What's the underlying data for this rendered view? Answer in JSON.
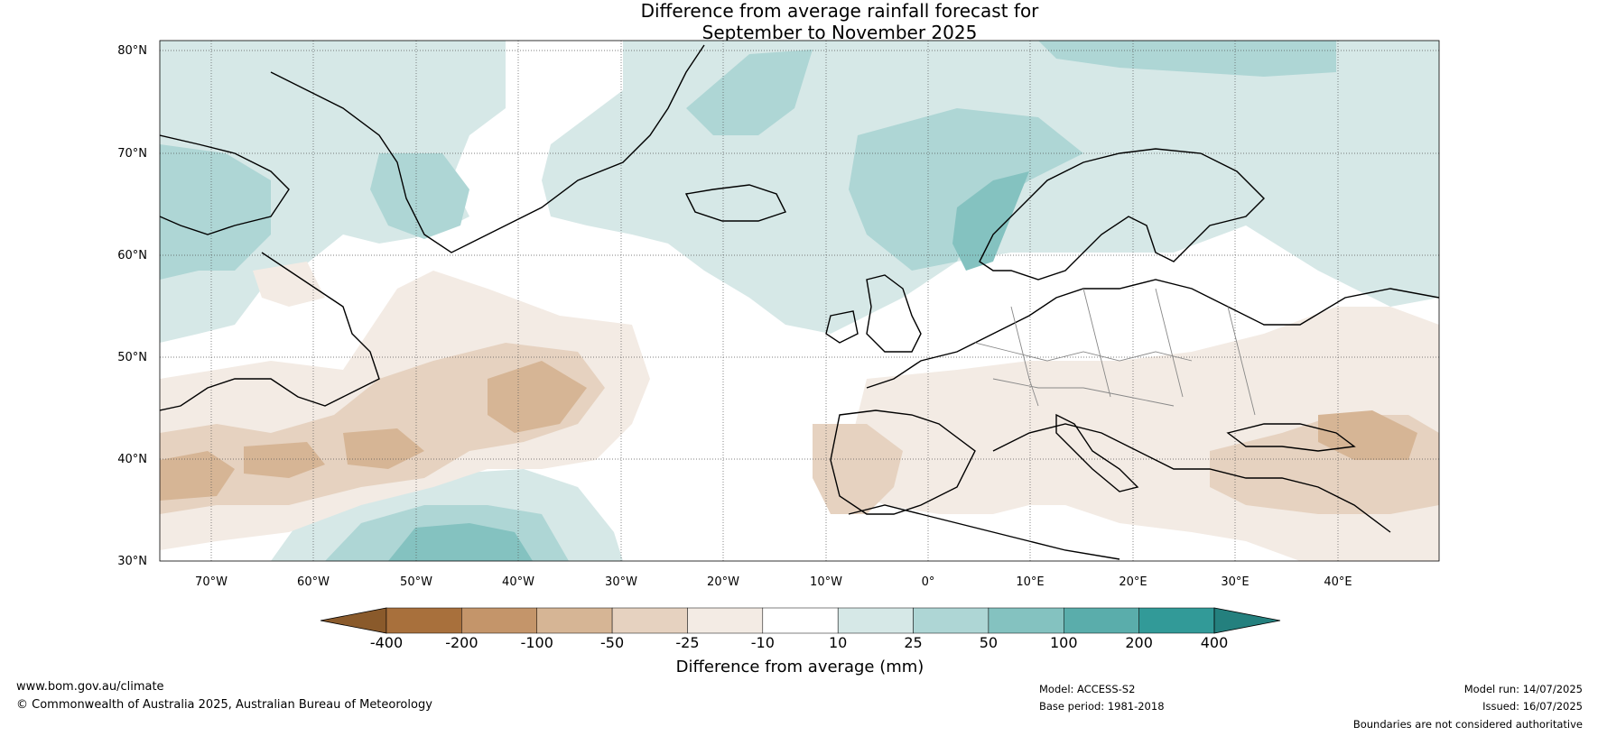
{
  "title_line1": "Difference from average rainfall forecast for",
  "title_line2": "September to November 2025",
  "lat_labels": [
    "80°N",
    "70°N",
    "60°N",
    "50°N",
    "40°N",
    "30°N"
  ],
  "lon_labels": [
    "70°W",
    "60°W",
    "50°W",
    "40°W",
    "30°W",
    "20°W",
    "10°W",
    "0°",
    "10°E",
    "20°E",
    "30°E",
    "40°E"
  ],
  "colorbar": {
    "title": "Difference from average (mm)",
    "tick_labels": [
      "-400",
      "-200",
      "-100",
      "-50",
      "-25",
      "-10",
      "10",
      "25",
      "50",
      "100",
      "200",
      "400"
    ],
    "colors": [
      "#8a5a2b",
      "#a8703c",
      "#c4956a",
      "#d6b595",
      "#e6d2c0",
      "#f3ebe4",
      "#ffffff",
      "#d6e8e7",
      "#aed6d5",
      "#84c2c0",
      "#5aadab",
      "#329a98",
      "#24807e"
    ]
  },
  "footer": {
    "website": "www.bom.gov.au/climate",
    "copyright": "© Commonwealth of Australia 2025, Australian Bureau of Meteorology",
    "model": "Model: ACCESS-S2",
    "base_period": "Base period: 1981-2018",
    "model_run": "Model run: 14/07/2025",
    "issued": "Issued: 16/07/2025",
    "disclaimer": "Boundaries are not considered authoritative"
  }
}
